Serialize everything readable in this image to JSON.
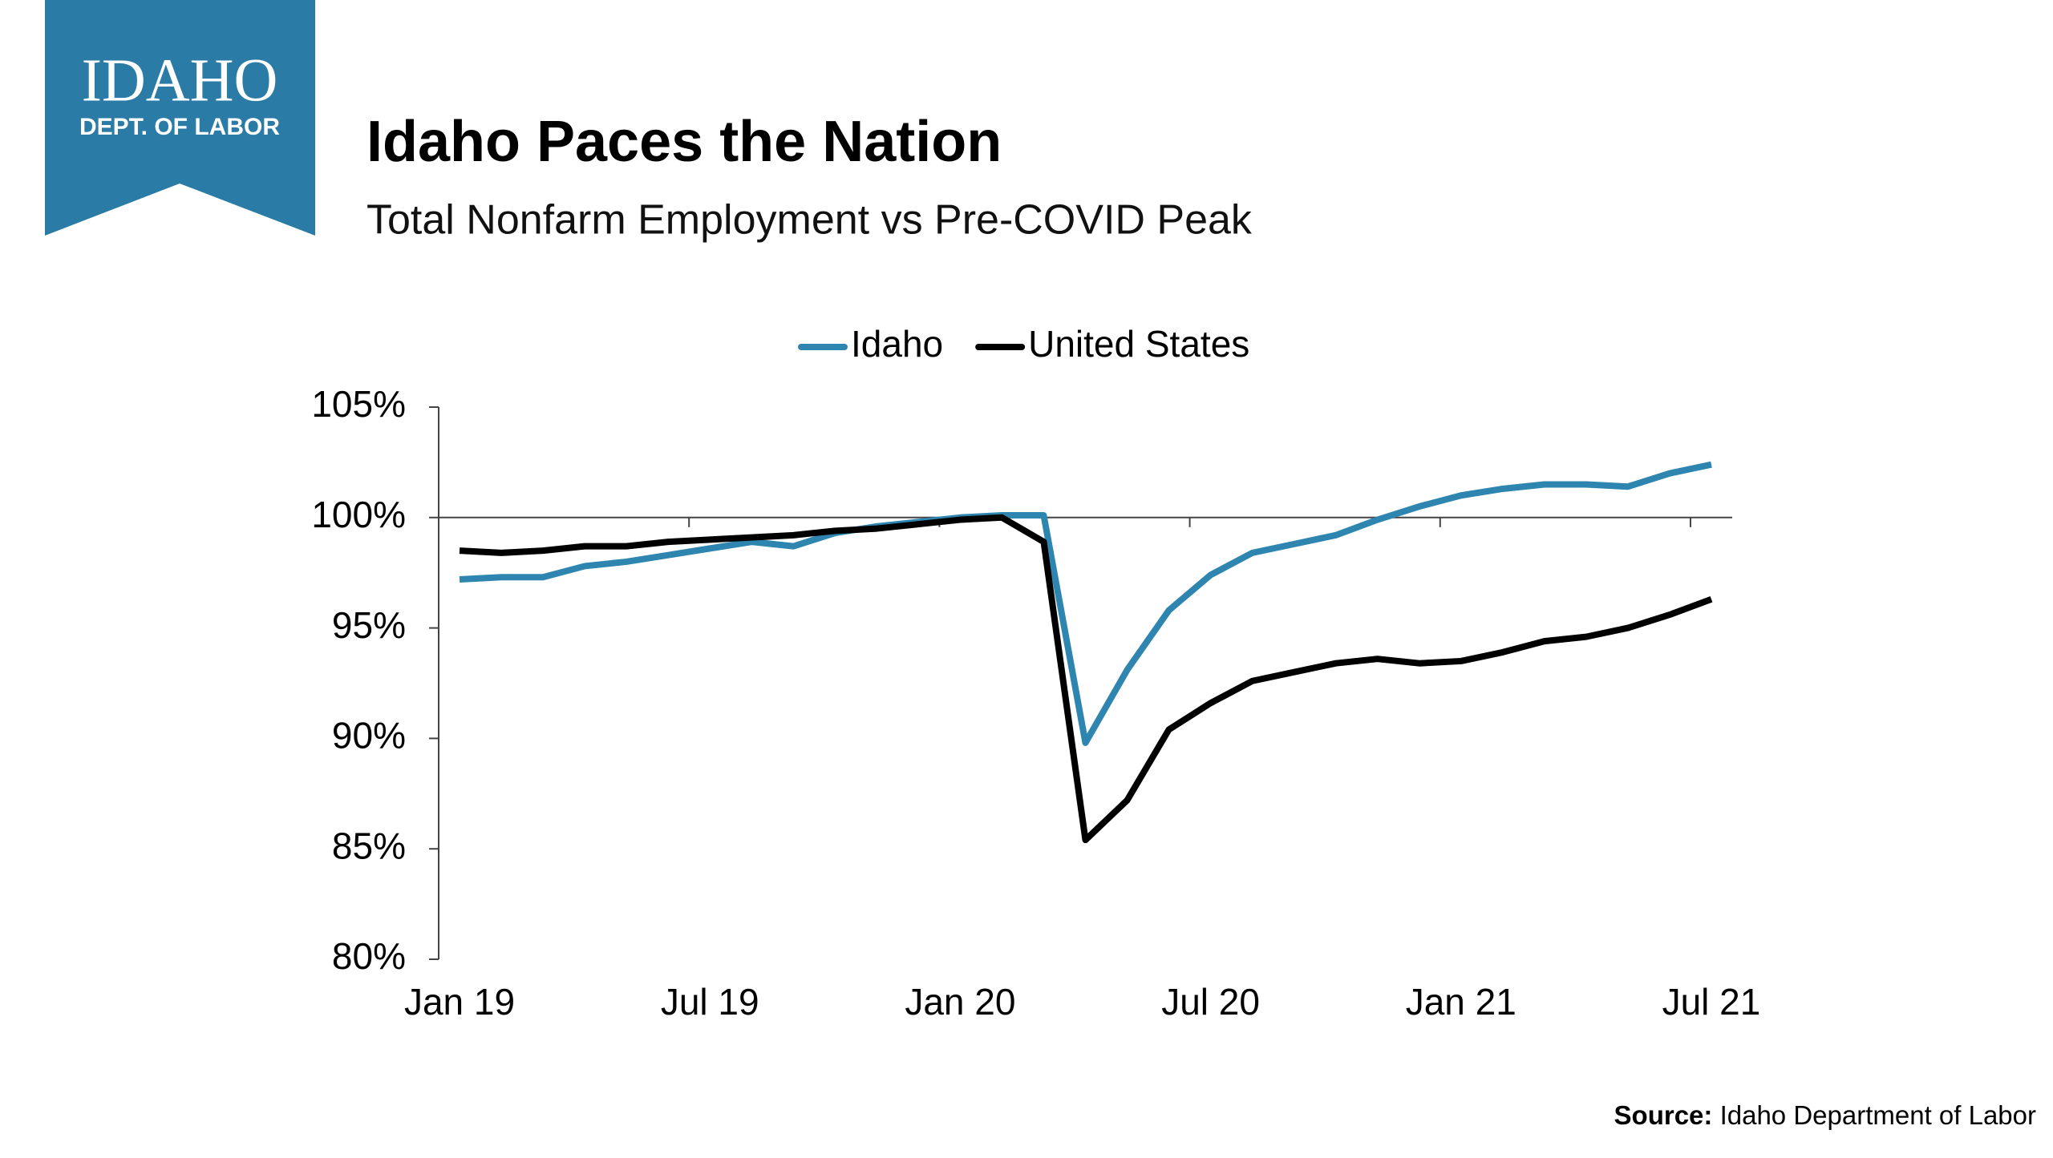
{
  "logo": {
    "name": "IDAHO",
    "dept": "DEPT. OF LABOR"
  },
  "chart_data": {
    "type": "line",
    "title": "Idaho Paces the Nation",
    "subtitle": "Total Nonfarm Employment vs Pre-COVID Peak",
    "categories": [
      "Jan 19",
      null,
      null,
      null,
      null,
      null,
      "Jul 19",
      null,
      null,
      null,
      null,
      null,
      "Jan 20",
      null,
      null,
      null,
      null,
      null,
      "Jul 20",
      null,
      null,
      null,
      null,
      null,
      "Jan 21",
      null,
      null,
      null,
      null,
      null,
      "Jul 21"
    ],
    "series": [
      {
        "name": "Idaho",
        "color": "#2e86b0",
        "values": [
          97.2,
          97.3,
          97.3,
          97.8,
          98.0,
          98.3,
          98.6,
          98.9,
          98.7,
          99.3,
          99.6,
          99.8,
          100.0,
          100.1,
          100.1,
          89.8,
          93.1,
          95.8,
          97.4,
          98.4,
          98.8,
          99.2,
          99.9,
          100.5,
          101.0,
          101.3,
          101.5,
          101.5,
          101.4,
          102.0,
          102.4
        ]
      },
      {
        "name": "United States",
        "color": "#000000",
        "values": [
          98.5,
          98.4,
          98.5,
          98.7,
          98.7,
          98.9,
          99.0,
          99.1,
          99.2,
          99.4,
          99.5,
          99.7,
          99.9,
          100.0,
          98.9,
          85.4,
          87.2,
          90.4,
          91.6,
          92.6,
          93.0,
          93.4,
          93.6,
          93.4,
          93.5,
          93.9,
          94.4,
          94.6,
          95.0,
          95.6,
          96.3
        ]
      }
    ],
    "ylim": [
      80,
      105
    ],
    "yticks": [
      {
        "value": 80,
        "label": "80%"
      },
      {
        "value": 85,
        "label": "85%"
      },
      {
        "value": 90,
        "label": "90%"
      },
      {
        "value": 95,
        "label": "95%"
      },
      {
        "value": 100,
        "label": "100%"
      },
      {
        "value": 105,
        "label": "105%"
      }
    ],
    "x_axis_crosses": 100,
    "legend": "top",
    "source_label": "Source:",
    "source": "Idaho Department of Labor"
  }
}
